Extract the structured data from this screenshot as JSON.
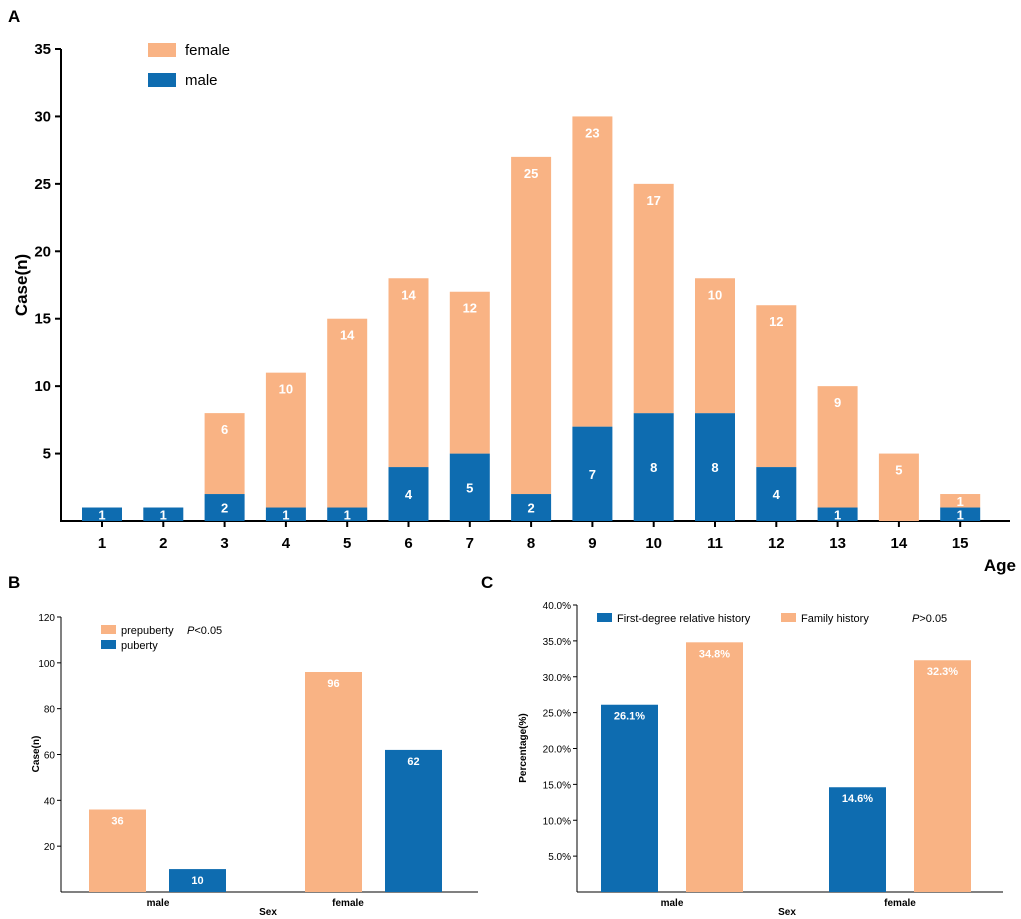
{
  "colors": {
    "female": "#F9B384",
    "male": "#0E6CB0",
    "axis": "#000000",
    "label": "#ffffff"
  },
  "chart_data": [
    {
      "panel": "A",
      "type": "bar",
      "stacked": true,
      "xlabel": "Age",
      "ylabel": "Case(n)",
      "ylim": [
        0,
        35
      ],
      "yticks": [
        5,
        10,
        15,
        20,
        25,
        30,
        35
      ],
      "categories": [
        "1",
        "2",
        "3",
        "4",
        "5",
        "6",
        "7",
        "8",
        "9",
        "10",
        "11",
        "12",
        "13",
        "14",
        "15"
      ],
      "legend_position": "top-left",
      "series": [
        {
          "name": "male",
          "color_key": "male",
          "values": [
            1,
            1,
            2,
            1,
            1,
            4,
            5,
            2,
            7,
            8,
            8,
            4,
            1,
            0,
            1
          ]
        },
        {
          "name": "female",
          "color_key": "female",
          "values": [
            0,
            0,
            6,
            10,
            14,
            14,
            12,
            25,
            23,
            17,
            10,
            12,
            9,
            5,
            1
          ]
        }
      ],
      "legend": [
        {
          "label": "female",
          "color_key": "female"
        },
        {
          "label": "male",
          "color_key": "male"
        }
      ]
    },
    {
      "panel": "B",
      "type": "bar",
      "stacked": false,
      "xlabel": "Sex",
      "ylabel": "Case(n)",
      "ylim": [
        0,
        120
      ],
      "yticks": [
        20,
        40,
        60,
        80,
        100,
        120
      ],
      "categories": [
        "male",
        "female"
      ],
      "legend_position": "top-left",
      "series": [
        {
          "name": "prepuberty",
          "color_key": "female",
          "values": [
            36,
            96
          ]
        },
        {
          "name": "puberty",
          "color_key": "male",
          "values": [
            10,
            62
          ]
        }
      ],
      "legend": [
        {
          "label": "prepuberty",
          "color_key": "female"
        },
        {
          "label": "puberty",
          "color_key": "male"
        }
      ],
      "annotation": {
        "p": "P",
        "rest": "<0.05"
      }
    },
    {
      "panel": "C",
      "type": "bar",
      "stacked": false,
      "xlabel": "Sex",
      "ylabel": "Percentage(%)",
      "ylim": [
        0,
        40
      ],
      "yticks": [
        5,
        10,
        15,
        20,
        25,
        30,
        35,
        40
      ],
      "tick_format": "percent1",
      "categories": [
        "male",
        "female"
      ],
      "legend_position": "top",
      "series": [
        {
          "name": "First-degree relative history",
          "color_key": "male",
          "values": [
            26.1,
            14.6
          ],
          "labels": [
            "26.1%",
            "14.6%"
          ]
        },
        {
          "name": "Family history",
          "color_key": "female",
          "values": [
            34.8,
            32.3
          ],
          "labels": [
            "34.8%",
            "32.3%"
          ]
        }
      ],
      "legend": [
        {
          "label": "First-degree relative history",
          "color_key": "male"
        },
        {
          "label": "Family history",
          "color_key": "female"
        }
      ],
      "annotation": {
        "p": "P",
        "rest": ">0.05"
      }
    }
  ]
}
